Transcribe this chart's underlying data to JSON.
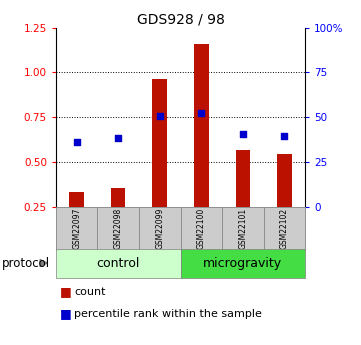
{
  "title": "GDS928 / 98",
  "samples": [
    "GSM22097",
    "GSM22098",
    "GSM22099",
    "GSM22100",
    "GSM22101",
    "GSM22102"
  ],
  "bar_heights": [
    0.335,
    0.355,
    0.965,
    1.16,
    0.565,
    0.545
  ],
  "blue_dots": [
    0.615,
    0.635,
    0.755,
    0.775,
    0.655,
    0.645
  ],
  "bar_color": "#bb1100",
  "dot_color": "#0000cc",
  "left_ylim": [
    0.25,
    1.25
  ],
  "right_ylim": [
    0,
    100
  ],
  "left_yticks": [
    0.25,
    0.5,
    0.75,
    1.0,
    1.25
  ],
  "right_yticks": [
    0,
    25,
    50,
    75,
    100
  ],
  "right_yticklabels": [
    "0",
    "25",
    "50",
    "75",
    "100%"
  ],
  "hlines": [
    0.5,
    0.75,
    1.0
  ],
  "protocol_labels": [
    "control",
    "microgravity"
  ],
  "control_color": "#ccffcc",
  "microgravity_color": "#44dd44",
  "header_color": "#cccccc",
  "bar_bottom": 0.25,
  "legend_count_label": "count",
  "legend_pct_label": "percentile rank within the sample",
  "title_fontsize": 10,
  "tick_fontsize": 7.5,
  "sample_fontsize": 5.5,
  "protocol_fontsize": 9,
  "legend_fontsize": 8
}
